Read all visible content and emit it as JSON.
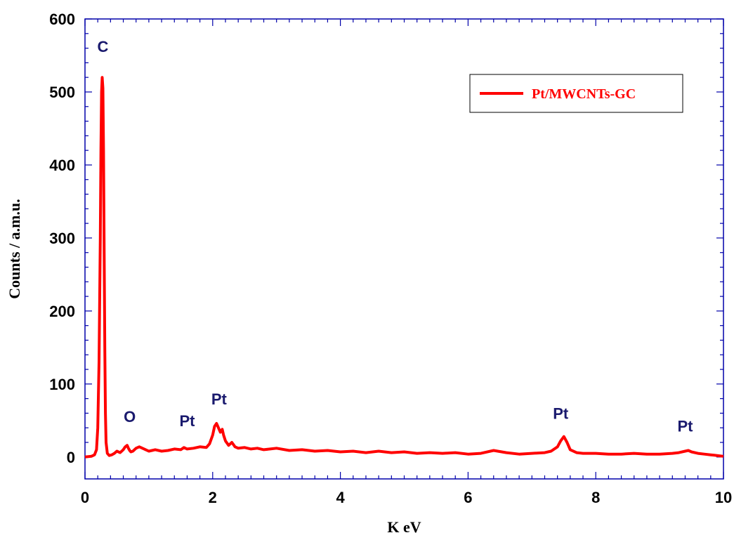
{
  "chart_data": {
    "type": "line",
    "title": "",
    "xlabel": "K eV",
    "ylabel": "Counts / a.m.u.",
    "xlim": [
      0,
      10
    ],
    "ylim": [
      -30,
      600
    ],
    "x_ticks": [
      0,
      2,
      4,
      6,
      8,
      10
    ],
    "y_ticks": [
      0,
      100,
      200,
      300,
      400,
      500,
      600
    ],
    "x_tick_labels": [
      "0",
      "2",
      "4",
      "6",
      "8",
      "10"
    ],
    "y_tick_labels": [
      "0",
      "100",
      "200",
      "300",
      "400",
      "500",
      "600"
    ],
    "grid": false,
    "legend_position": "top-right",
    "line_color": "#ff0000",
    "peak_label_color": "#1a1a6e",
    "series": [
      {
        "name": "Pt/MWCNTs-GC",
        "x": [
          0,
          0.1,
          0.15,
          0.18,
          0.2,
          0.22,
          0.24,
          0.25,
          0.26,
          0.27,
          0.28,
          0.29,
          0.3,
          0.31,
          0.32,
          0.33,
          0.35,
          0.38,
          0.42,
          0.46,
          0.5,
          0.55,
          0.6,
          0.63,
          0.66,
          0.68,
          0.7,
          0.72,
          0.75,
          0.8,
          0.85,
          0.9,
          0.95,
          1.0,
          1.05,
          1.1,
          1.2,
          1.3,
          1.4,
          1.5,
          1.55,
          1.6,
          1.7,
          1.8,
          1.9,
          1.95,
          2.0,
          2.03,
          2.06,
          2.09,
          2.12,
          2.15,
          2.17,
          2.2,
          2.25,
          2.3,
          2.35,
          2.4,
          2.5,
          2.6,
          2.7,
          2.8,
          2.9,
          3.0,
          3.2,
          3.4,
          3.6,
          3.8,
          4.0,
          4.2,
          4.4,
          4.6,
          4.8,
          5.0,
          5.2,
          5.4,
          5.6,
          5.8,
          6.0,
          6.2,
          6.4,
          6.6,
          6.8,
          7.0,
          7.2,
          7.3,
          7.4,
          7.45,
          7.5,
          7.55,
          7.6,
          7.7,
          7.8,
          8.0,
          8.2,
          8.4,
          8.6,
          8.8,
          9.0,
          9.2,
          9.3,
          9.4,
          9.45,
          9.5,
          9.6,
          9.7,
          9.8,
          9.9,
          10.0
        ],
        "y": [
          0,
          1,
          3,
          10,
          40,
          130,
          300,
          420,
          500,
          520,
          505,
          420,
          280,
          150,
          60,
          20,
          5,
          2,
          3,
          5,
          8,
          6,
          10,
          14,
          16,
          12,
          9,
          7,
          8,
          12,
          14,
          12,
          10,
          8,
          9,
          10,
          8,
          9,
          11,
          10,
          13,
          11,
          12,
          14,
          13,
          18,
          30,
          42,
          46,
          40,
          34,
          38,
          30,
          22,
          16,
          20,
          14,
          12,
          13,
          11,
          12,
          10,
          11,
          12,
          9,
          10,
          8,
          9,
          7,
          8,
          6,
          8,
          6,
          7,
          5,
          6,
          5,
          6,
          4,
          5,
          9,
          6,
          4,
          5,
          6,
          8,
          14,
          22,
          28,
          20,
          10,
          6,
          5,
          5,
          4,
          4,
          5,
          4,
          4,
          5,
          6,
          8,
          9,
          7,
          5,
          4,
          3,
          2,
          1
        ]
      }
    ],
    "annotations": [
      {
        "text": "C",
        "x": 0.28,
        "y": 555
      },
      {
        "text": "O",
        "x": 0.7,
        "y": 48
      },
      {
        "text": "Pt",
        "x": 1.6,
        "y": 42
      },
      {
        "text": "Pt",
        "x": 2.1,
        "y": 72
      },
      {
        "text": "Pt",
        "x": 7.45,
        "y": 52
      },
      {
        "text": "Pt",
        "x": 9.4,
        "y": 35
      }
    ]
  }
}
